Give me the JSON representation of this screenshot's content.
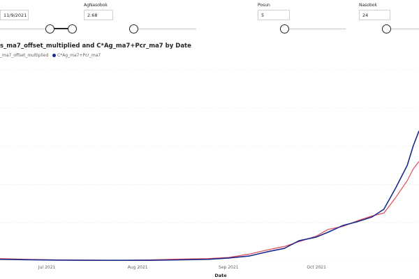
{
  "slicers": {
    "date": {
      "value": "11/9/2021",
      "position": 1.0
    },
    "agnasobok": {
      "label": "AgNasobok",
      "value": "2.68",
      "position": 0.0
    },
    "posun": {
      "label": "Posun",
      "value": "5",
      "position": 0.0
    },
    "nasobok": {
      "label": "Nasobok",
      "value": "24",
      "position": 0.0
    }
  },
  "chart": {
    "title": "s_ma7_offset_multiplied and C*Ag_ma7+Pcr_ma7 by Date",
    "xlabel": "Date",
    "legend": [
      {
        "label": "_ma7_offset_multiplied",
        "color": "#e04a5a"
      },
      {
        "label": "C*Ag_ma7+Pcr_ma7",
        "color": "#1a2a8c"
      }
    ],
    "xticks": [
      "Jul 2021",
      "Aug 2021",
      "Sep 2021",
      "Oct 2021"
    ],
    "colors": {
      "accent": "#1a2a8c",
      "red": "#e04a5a",
      "grid": "#e1dfdd"
    }
  },
  "chart_data": {
    "type": "line",
    "title": "s_ma7_offset_multiplied and C*Ag_ma7+Pcr_ma7 by Date",
    "xlabel": "Date",
    "ylabel": "",
    "x_range": [
      "2021-06-15",
      "2021-11-05"
    ],
    "ylim": [
      0,
      100
    ],
    "grid": true,
    "legend_position": "top-left",
    "series": [
      {
        "name": "_ma7_offset_multiplied",
        "color": "#e04a5a",
        "points": [
          [
            "2021-06-15",
            1.2
          ],
          [
            "2021-06-25",
            0.8
          ],
          [
            "2021-07-05",
            0.5
          ],
          [
            "2021-07-15",
            0.4
          ],
          [
            "2021-07-25",
            0.3
          ],
          [
            "2021-08-05",
            0.5
          ],
          [
            "2021-08-15",
            0.9
          ],
          [
            "2021-08-25",
            1.2
          ],
          [
            "2021-09-01",
            1.8
          ],
          [
            "2021-09-08",
            3.5
          ],
          [
            "2021-09-15",
            6.0
          ],
          [
            "2021-09-20",
            7.5
          ],
          [
            "2021-09-25",
            10.0
          ],
          [
            "2021-10-01",
            13.0
          ],
          [
            "2021-10-05",
            16.5
          ],
          [
            "2021-10-10",
            18.0
          ],
          [
            "2021-10-15",
            21.0
          ],
          [
            "2021-10-20",
            23.5
          ],
          [
            "2021-10-24",
            25.0
          ],
          [
            "2021-10-28",
            33.0
          ],
          [
            "2021-11-01",
            42.0
          ],
          [
            "2021-11-03",
            48.0
          ],
          [
            "2021-11-05",
            52.0
          ]
        ]
      },
      {
        "name": "C*Ag_ma7+Pcr_ma7",
        "color": "#1a2a8c",
        "points": [
          [
            "2021-06-15",
            0.8
          ],
          [
            "2021-06-25",
            0.6
          ],
          [
            "2021-07-05",
            0.4
          ],
          [
            "2021-07-15",
            0.3
          ],
          [
            "2021-07-25",
            0.3
          ],
          [
            "2021-08-05",
            0.3
          ],
          [
            "2021-08-15",
            0.5
          ],
          [
            "2021-08-25",
            0.8
          ],
          [
            "2021-09-01",
            1.5
          ],
          [
            "2021-09-08",
            2.5
          ],
          [
            "2021-09-15",
            5.0
          ],
          [
            "2021-09-20",
            6.5
          ],
          [
            "2021-09-25",
            10.5
          ],
          [
            "2021-10-01",
            12.5
          ],
          [
            "2021-10-05",
            15.0
          ],
          [
            "2021-10-10",
            18.5
          ],
          [
            "2021-10-15",
            20.5
          ],
          [
            "2021-10-20",
            23.0
          ],
          [
            "2021-10-24",
            27.0
          ],
          [
            "2021-10-28",
            38.0
          ],
          [
            "2021-11-01",
            50.0
          ],
          [
            "2021-11-03",
            60.0
          ],
          [
            "2021-11-05",
            68.0
          ]
        ]
      }
    ]
  }
}
